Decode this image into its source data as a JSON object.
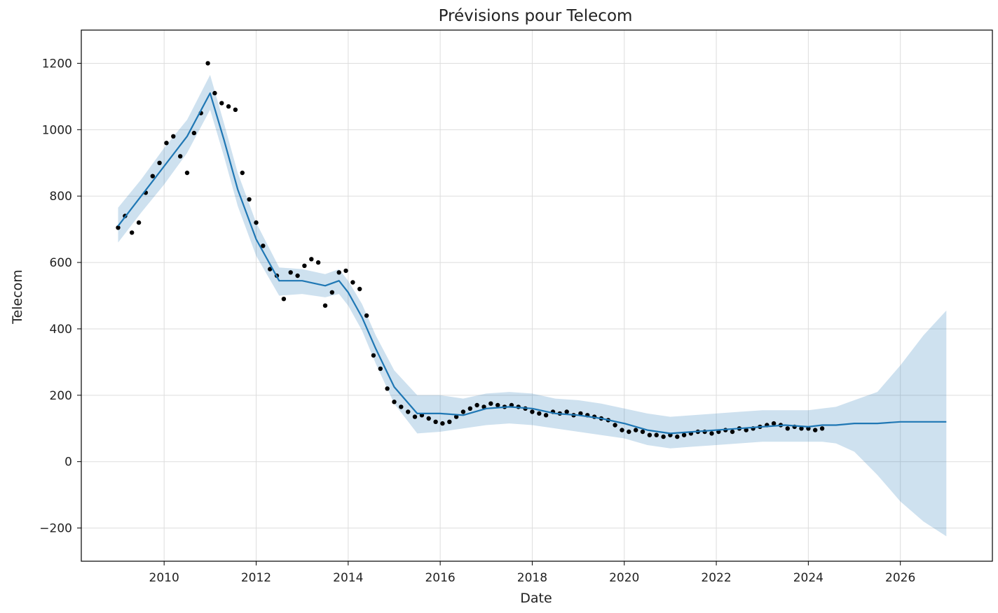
{
  "chart_data": {
    "type": "line",
    "title": "Prévisions pour Telecom",
    "xlabel": "Date",
    "ylabel": "Telecom",
    "xlim": [
      2008.2,
      2028.0
    ],
    "ylim": [
      -300,
      1300
    ],
    "x_ticks": [
      2010,
      2012,
      2014,
      2016,
      2018,
      2020,
      2022,
      2024,
      2026
    ],
    "x_tick_labels": [
      "2010",
      "2012",
      "2014",
      "2016",
      "2018",
      "2020",
      "2022",
      "2024",
      "2026"
    ],
    "y_ticks": [
      -200,
      0,
      200,
      400,
      600,
      800,
      1000,
      1200
    ],
    "y_tick_labels": [
      "−200",
      "0",
      "200",
      "400",
      "600",
      "800",
      "1000",
      "1200"
    ],
    "grid": true,
    "colors": {
      "forecast_line": "#1f77b4",
      "interval_fill": "#1f77b4",
      "observed_points": "#000000",
      "grid": "#dddddd"
    },
    "series": [
      {
        "type": "area",
        "x": [
          2009.0,
          2009.5,
          2010.0,
          2010.5,
          2011.0,
          2011.3,
          2011.6,
          2012.0,
          2012.5,
          2013.0,
          2013.5,
          2013.8,
          2014.0,
          2014.3,
          2014.6,
          2015.0,
          2015.5,
          2016.0,
          2016.5,
          2017.0,
          2017.5,
          2018.0,
          2018.5,
          2019.0,
          2019.5,
          2020.0,
          2020.5,
          2021.0,
          2021.5,
          2022.0,
          2022.5,
          2023.0,
          2023.5,
          2024.0,
          2024.3,
          2024.6,
          2025.0,
          2025.5,
          2026.0,
          2026.5,
          2027.0
        ],
        "upper": [
          765,
          850,
          945,
          1030,
          1165,
          1020,
          870,
          720,
          585,
          580,
          565,
          580,
          545,
          475,
          380,
          275,
          200,
          200,
          190,
          205,
          210,
          205,
          190,
          185,
          175,
          160,
          145,
          135,
          140,
          145,
          150,
          155,
          155,
          155,
          160,
          165,
          185,
          210,
          290,
          380,
          455
        ],
        "lower": [
          660,
          750,
          835,
          930,
          1060,
          920,
          770,
          620,
          500,
          505,
          495,
          505,
          470,
          395,
          295,
          175,
          85,
          90,
          100,
          110,
          115,
          110,
          100,
          90,
          80,
          70,
          50,
          40,
          45,
          50,
          55,
          60,
          60,
          60,
          60,
          55,
          30,
          -40,
          -120,
          -180,
          -225
        ]
      },
      {
        "type": "line",
        "x": [
          2009.0,
          2009.5,
          2010.0,
          2010.5,
          2011.0,
          2011.3,
          2011.6,
          2012.0,
          2012.5,
          2013.0,
          2013.5,
          2013.8,
          2014.0,
          2014.3,
          2014.6,
          2015.0,
          2015.5,
          2016.0,
          2016.5,
          2017.0,
          2017.5,
          2018.0,
          2018.5,
          2019.0,
          2019.5,
          2020.0,
          2020.5,
          2021.0,
          2021.5,
          2022.0,
          2022.5,
          2023.0,
          2023.5,
          2024.0,
          2024.3,
          2024.6,
          2025.0,
          2025.5,
          2026.0,
          2026.5,
          2027.0
        ],
        "y": [
          710,
          800,
          890,
          980,
          1110,
          970,
          820,
          670,
          545,
          545,
          530,
          545,
          510,
          435,
          340,
          225,
          145,
          145,
          140,
          160,
          165,
          160,
          145,
          140,
          130,
          115,
          95,
          85,
          90,
          95,
          100,
          105,
          110,
          105,
          110,
          110,
          115,
          115,
          120,
          120,
          120
        ]
      },
      {
        "type": "scatter",
        "x": [
          2009.0,
          2009.15,
          2009.3,
          2009.45,
          2009.6,
          2009.75,
          2009.9,
          2010.05,
          2010.2,
          2010.35,
          2010.5,
          2010.65,
          2010.8,
          2010.95,
          2011.1,
          2011.25,
          2011.4,
          2011.55,
          2011.7,
          2011.85,
          2012.0,
          2012.15,
          2012.3,
          2012.45,
          2012.6,
          2012.75,
          2012.9,
          2013.05,
          2013.2,
          2013.35,
          2013.5,
          2013.65,
          2013.8,
          2013.95,
          2014.1,
          2014.25,
          2014.4,
          2014.55,
          2014.7,
          2014.85,
          2015.0,
          2015.15,
          2015.3,
          2015.45,
          2015.6,
          2015.75,
          2015.9,
          2016.05,
          2016.2,
          2016.35,
          2016.5,
          2016.65,
          2016.8,
          2016.95,
          2017.1,
          2017.25,
          2017.4,
          2017.55,
          2017.7,
          2017.85,
          2018.0,
          2018.15,
          2018.3,
          2018.45,
          2018.6,
          2018.75,
          2018.9,
          2019.05,
          2019.2,
          2019.35,
          2019.5,
          2019.65,
          2019.8,
          2019.95,
          2020.1,
          2020.25,
          2020.4,
          2020.55,
          2020.7,
          2020.85,
          2021.0,
          2021.15,
          2021.3,
          2021.45,
          2021.6,
          2021.75,
          2021.9,
          2022.05,
          2022.2,
          2022.35,
          2022.5,
          2022.65,
          2022.8,
          2022.95,
          2023.1,
          2023.25,
          2023.4,
          2023.55,
          2023.7,
          2023.85,
          2024.0,
          2024.15,
          2024.3
        ],
        "y": [
          705,
          740,
          690,
          720,
          810,
          860,
          900,
          960,
          980,
          920,
          870,
          990,
          1050,
          1200,
          1110,
          1080,
          1070,
          1060,
          870,
          790,
          720,
          650,
          580,
          560,
          490,
          570,
          560,
          590,
          610,
          600,
          470,
          510,
          570,
          575,
          540,
          520,
          440,
          320,
          280,
          220,
          180,
          165,
          150,
          135,
          140,
          130,
          120,
          115,
          120,
          135,
          150,
          160,
          170,
          165,
          175,
          170,
          165,
          170,
          165,
          160,
          150,
          145,
          140,
          150,
          145,
          150,
          140,
          145,
          140,
          135,
          130,
          125,
          110,
          95,
          90,
          95,
          90,
          80,
          80,
          75,
          80,
          75,
          80,
          85,
          90,
          90,
          85,
          90,
          95,
          90,
          100,
          95,
          100,
          105,
          110,
          115,
          110,
          100,
          105,
          100,
          100,
          95,
          100
        ]
      }
    ]
  }
}
